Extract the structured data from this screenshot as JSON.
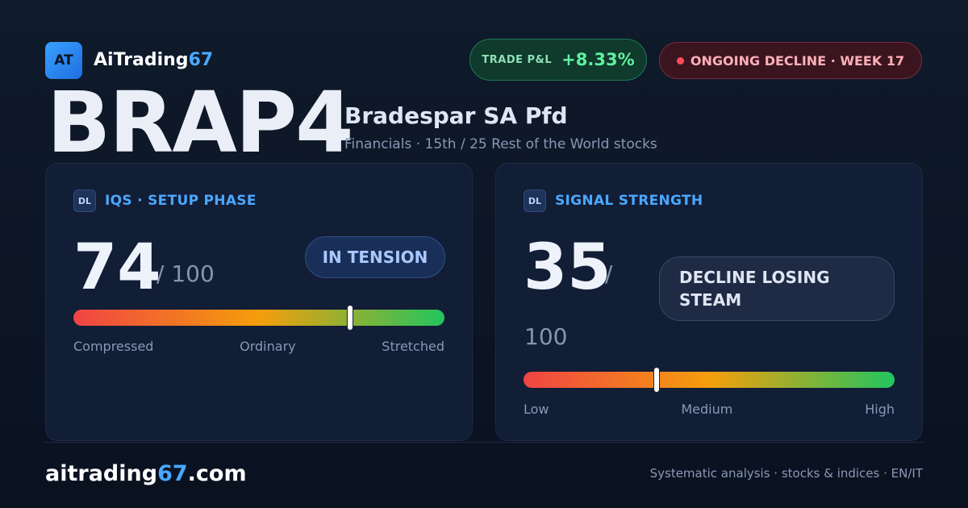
{
  "brand": {
    "badge": "AT",
    "name_main": "AiTrading",
    "name_accent": "67"
  },
  "header": {
    "pnl_label": "TRADE P&L",
    "pnl_value": "+8.33%",
    "status_text": "ONGOING DECLINE · WEEK 17",
    "colors": {
      "positive": "#5ff0a0",
      "negative": "#ff4d5e",
      "accent": "#4aa8ff"
    }
  },
  "stock": {
    "ticker": "BRAP4",
    "name": "Bradespar SA Pfd",
    "subtitle": "Financials · 15th / 25 Rest of the World stocks"
  },
  "iqs_card": {
    "tag": "DL",
    "title": "IQS · SETUP PHASE",
    "score": "74",
    "score_max": "/ 100",
    "state": "IN TENSION",
    "gauge_value": 0.745,
    "scale_labels": [
      "Compressed",
      "Ordinary",
      "Stretched"
    ]
  },
  "signal_card": {
    "tag": "DL",
    "title": "SIGNAL STRENGTH",
    "score": "35",
    "score_sep": "/",
    "score_max": "100",
    "state": "DECLINE LOSING STEAM",
    "gauge_value": 0.358,
    "scale_labels": [
      "Low",
      "Medium",
      "High"
    ]
  },
  "footer": {
    "site_main": "aitrading",
    "site_accent": "67",
    "site_tld": ".com",
    "tagline": "Systematic analysis · stocks & indices · EN/IT"
  }
}
